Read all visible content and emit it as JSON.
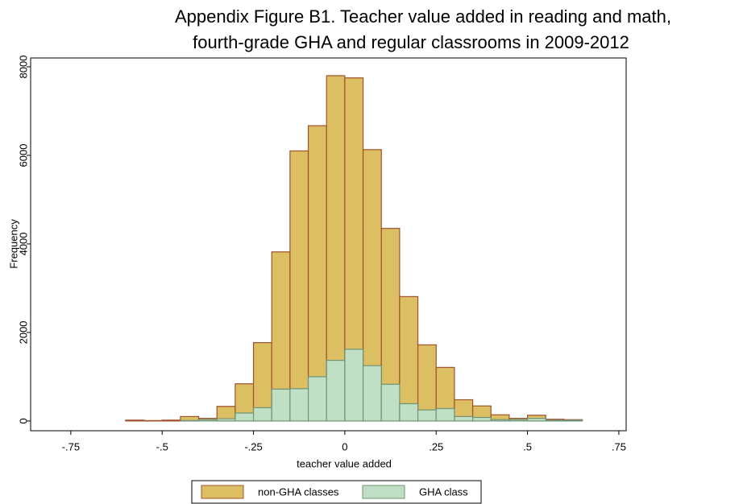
{
  "chart_data": {
    "type": "histogram",
    "title_lines": [
      "Appendix Figure B1. Teacher value added in reading and math,",
      "fourth-grade GHA and regular classrooms in 2009-2012"
    ],
    "x_label": "teacher value added",
    "y_label": "Frequency",
    "bins": [
      -0.6,
      -0.55,
      -0.5,
      -0.45,
      -0.4,
      -0.35,
      -0.3,
      -0.25,
      -0.2,
      -0.15,
      -0.1,
      -0.05,
      0,
      0.05,
      0.1,
      0.15,
      0.2,
      0.25,
      0.3,
      0.35,
      0.4,
      0.45,
      0.5,
      0.55,
      0.6,
      0.65
    ],
    "series": [
      {
        "name": "non-GHA classes",
        "color": "#dbbf62",
        "edge": "#a0522d",
        "values": [
          20,
          10,
          20,
          100,
          60,
          330,
          840,
          1770,
          3820,
          6100,
          6670,
          7800,
          7750,
          6130,
          4350,
          2810,
          1720,
          1210,
          480,
          340,
          140,
          60,
          130,
          40,
          30
        ]
      },
      {
        "name": "GHA class",
        "color": "#bfe0c5",
        "edge": "#6f9278",
        "values": [
          0,
          0,
          0,
          10,
          30,
          50,
          180,
          300,
          720,
          730,
          1000,
          1370,
          1620,
          1250,
          830,
          390,
          250,
          280,
          100,
          80,
          30,
          30,
          60,
          20,
          20
        ]
      }
    ],
    "xlim": [
      -0.86,
      0.77
    ],
    "ylim": [
      -220,
      8200
    ],
    "xticks": [
      {
        "value": -0.75,
        "label": "-.75"
      },
      {
        "value": -0.5,
        "label": "-.5"
      },
      {
        "value": -0.25,
        "label": "-.25"
      },
      0,
      {
        "value": 0.25,
        "label": ".25"
      },
      {
        "value": 0.5,
        "label": ".5"
      },
      {
        "value": 0.75,
        "label": ".75"
      }
    ],
    "yticks": [
      0,
      2000,
      4000,
      6000,
      8000
    ]
  }
}
